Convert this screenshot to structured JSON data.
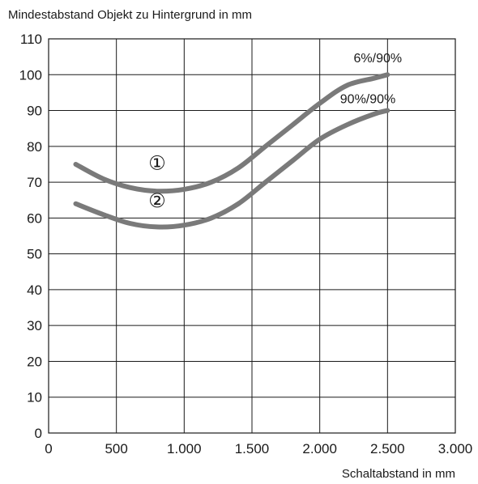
{
  "chart_data": {
    "type": "line",
    "ylabel": "Mindestabstand Objekt zu Hintergrund in mm",
    "xlabel": "Schaltabstand in mm",
    "xlim": [
      0,
      3000
    ],
    "ylim": [
      0,
      110
    ],
    "x_ticks": [
      0,
      500,
      1000,
      1500,
      2000,
      2500,
      3000
    ],
    "x_tick_labels": [
      "0",
      "500",
      "1.000",
      "1.500",
      "2.000",
      "2.500",
      "3.000"
    ],
    "y_ticks": [
      0,
      10,
      20,
      30,
      40,
      50,
      60,
      70,
      80,
      90,
      100,
      110
    ],
    "y_tick_labels": [
      "0",
      "10",
      "20",
      "30",
      "40",
      "50",
      "60",
      "70",
      "80",
      "90",
      "100",
      "110"
    ],
    "grid": true,
    "line_color": "#7a7a7a",
    "series": [
      {
        "name": "6%/90%",
        "marker": "①",
        "x": [
          200,
          400,
          600,
          800,
          1000,
          1200,
          1400,
          1600,
          1800,
          2000,
          2200,
          2400,
          2500
        ],
        "y": [
          75,
          71,
          68.5,
          67.5,
          68,
          70,
          74,
          80,
          86,
          92,
          97,
          99,
          100
        ]
      },
      {
        "name": "90%/90%",
        "marker": "②",
        "x": [
          200,
          400,
          600,
          800,
          1000,
          1200,
          1400,
          1600,
          1800,
          2000,
          2200,
          2400,
          2500
        ],
        "y": [
          64,
          61,
          58.5,
          57.5,
          58,
          60,
          64,
          70,
          76,
          82,
          86,
          89,
          90
        ]
      }
    ]
  }
}
